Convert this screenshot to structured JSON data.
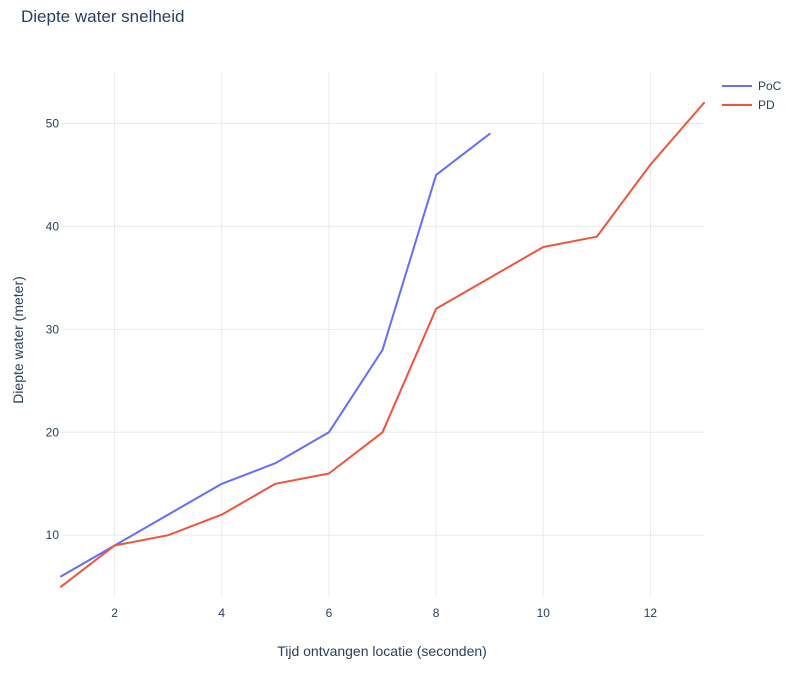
{
  "chart_data": {
    "type": "line",
    "title": "Diepte water snelheid",
    "xlabel": "Tijd ontvangen locatie (seconden)",
    "ylabel": "Diepte water (meter)",
    "xlim": [
      1,
      13
    ],
    "ylim": [
      4,
      55
    ],
    "xticks": [
      2,
      4,
      6,
      8,
      10,
      12
    ],
    "yticks": [
      10,
      20,
      30,
      40,
      50
    ],
    "grid": true,
    "legend": "top-right",
    "series": [
      {
        "name": "PoC",
        "color": "#636efa",
        "x": [
          1,
          2,
          3,
          4,
          5,
          6,
          7,
          8,
          9
        ],
        "y": [
          6,
          9,
          12,
          15,
          17,
          20,
          28,
          45,
          49
        ]
      },
      {
        "name": "PD",
        "color": "#ef553b",
        "x": [
          1,
          2,
          3,
          4,
          5,
          6,
          7,
          8,
          9,
          10,
          11,
          12,
          13
        ],
        "y": [
          5,
          9,
          10,
          12,
          15,
          16,
          20,
          32,
          35,
          38,
          39,
          46,
          52
        ]
      }
    ]
  }
}
